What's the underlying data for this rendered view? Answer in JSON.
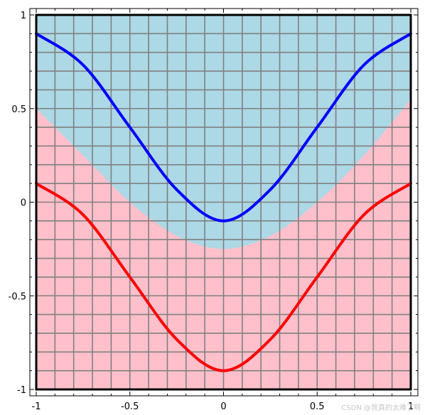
{
  "chart_data": {
    "type": "line",
    "xlim": [
      -1,
      1
    ],
    "ylim": [
      -1,
      1
    ],
    "grid": true,
    "grid_color": "#808080",
    "x_ticks": [
      -1,
      -0.5,
      0,
      0.5,
      1
    ],
    "y_ticks": [
      -1,
      -0.5,
      0,
      0.5,
      1
    ],
    "x_tick_labels": [
      "-1",
      "-0.5",
      "0",
      "0.5",
      "1"
    ],
    "y_tick_labels": [
      "-1",
      "-0.5",
      "0",
      "0.5",
      "1"
    ],
    "regions": [
      {
        "color": "#ffc0cb",
        "description_hidden": true,
        "boundary": {
          "x": [
            -1,
            -0.75,
            -0.5,
            -0.25,
            0,
            0.25,
            0.5,
            0.75,
            1
          ],
          "y": [
            0.5,
            0.25,
            0.0,
            -0.18,
            -0.25,
            -0.18,
            0.0,
            0.25,
            0.55
          ]
        },
        "side": "below"
      },
      {
        "color": "#add8e6",
        "side": "above"
      }
    ],
    "series": [
      {
        "color": "#0000ff",
        "x": [
          -1,
          -0.75,
          -0.5,
          -0.25,
          0,
          0.25,
          0.5,
          0.75,
          1
        ],
        "y": [
          0.9,
          0.733,
          0.4,
          0.067,
          -0.1,
          0.067,
          0.4,
          0.733,
          0.9
        ]
      },
      {
        "color": "#ff0000",
        "x": [
          -1,
          -0.75,
          -0.5,
          -0.25,
          0,
          0.25,
          0.5,
          0.75,
          1
        ],
        "y": [
          0.1,
          -0.067,
          -0.4,
          -0.733,
          -0.9,
          -0.733,
          -0.4,
          -0.067,
          0.1
        ]
      }
    ]
  },
  "watermark": "CSDN @我真的太难了啊"
}
